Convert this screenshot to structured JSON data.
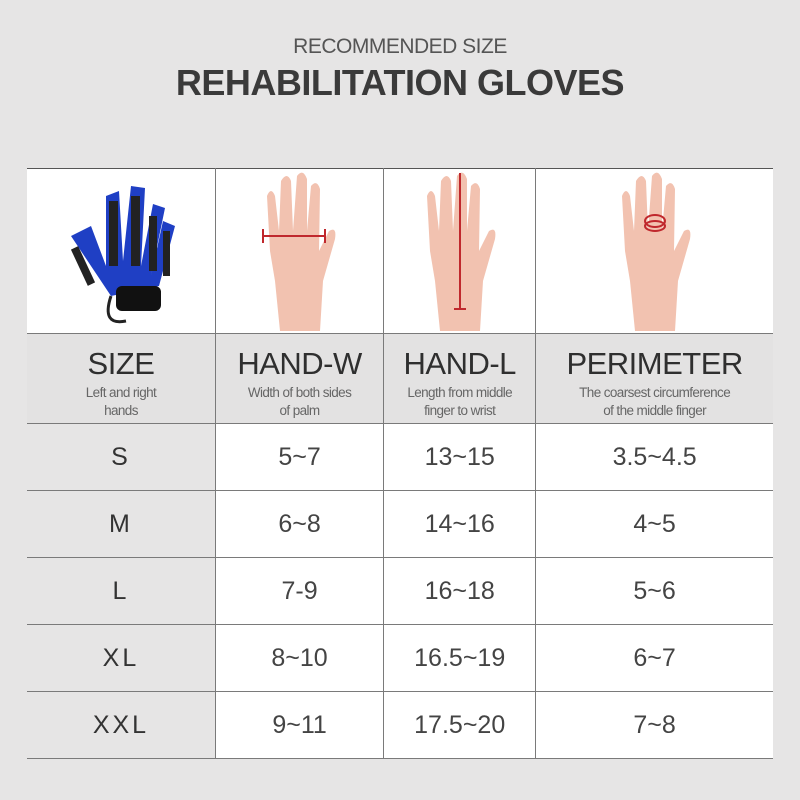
{
  "subtitle": "RECOMMENDED SIZE",
  "title": "REHABILITATION GLOVES",
  "images": [
    "glove-image",
    "hand-width-diagram",
    "hand-length-diagram",
    "finger-perimeter-diagram"
  ],
  "columns": [
    {
      "title": "SIZE",
      "desc1": "Left and right",
      "desc2": "hands"
    },
    {
      "title": "HAND-W",
      "desc1": "Width of both sides",
      "desc2": "of palm"
    },
    {
      "title": "HAND-L",
      "desc1": "Length from middle",
      "desc2": "finger to wrist"
    },
    {
      "title": "PERIMETER",
      "desc1": "The coarsest circumference",
      "desc2": "of the middle finger"
    }
  ],
  "rows": [
    [
      "S",
      "5~7",
      "13~15",
      "3.5~4.5"
    ],
    [
      "M",
      "6~8",
      "14~16",
      "4~5"
    ],
    [
      "L",
      "7-9",
      "16~18",
      "5~6"
    ],
    [
      "XL",
      "8~10",
      "16.5~19",
      "6~7"
    ],
    [
      "XXL",
      "9~11",
      "17.5~20",
      "7~8"
    ]
  ],
  "colors": {
    "glove": "#1f3fc4",
    "measure": "#c0282d",
    "skin": "#f2c2b0"
  }
}
